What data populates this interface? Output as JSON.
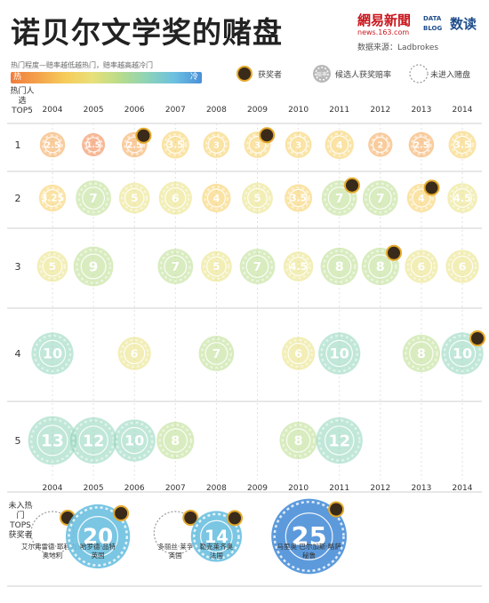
{
  "header": {
    "title": "诺贝尔文学奖的赌盘",
    "logo_netease": "網易新聞",
    "logo_netease_url": "news.163.com",
    "logo_datablog": "DATA BLOG",
    "logo_shudu": "数读",
    "source": "数据来源：Ladbrokes"
  },
  "legend": {
    "heat_label": "热门程度—赔率越低越热门，赔率越高越冷门",
    "hot": "热",
    "cold": "冷",
    "winner": "获奖者",
    "odds_chip": "赔率",
    "candidate": "候选人获奖赔率",
    "not_listed": "未进入赌盘"
  },
  "axis": {
    "row_header": "热门人选TOP5",
    "bottom_row_label": "未入热门TOPS获奖者",
    "row_labels": [
      "1",
      "2",
      "3",
      "4",
      "5"
    ]
  },
  "chart_data": {
    "type": "scatter",
    "title": "诺贝尔文学奖的赌盘",
    "x_labels": [
      "2004",
      "2005",
      "2006",
      "2007",
      "2008",
      "2009",
      "2010",
      "2011",
      "2012",
      "2013",
      "2014"
    ],
    "rows": [
      "1",
      "2",
      "3",
      "4",
      "5"
    ],
    "color_scale": [
      "#f07c3c",
      "#f4a24c",
      "#f6cc5a",
      "#e8e07a",
      "#b8dc8a",
      "#8dd3b8",
      "#6cc0e0",
      "#4a8fd8"
    ],
    "points": [
      {
        "year": "2004",
        "rank": 1,
        "odds": 2.5,
        "winner": false
      },
      {
        "year": "2005",
        "rank": 1,
        "odds": 1.5,
        "winner": false
      },
      {
        "year": "2006",
        "rank": 1,
        "odds": 2.5,
        "winner": true
      },
      {
        "year": "2007",
        "rank": 1,
        "odds": 3.5,
        "winner": false
      },
      {
        "year": "2008",
        "rank": 1,
        "odds": 3,
        "winner": false
      },
      {
        "year": "2009",
        "rank": 1,
        "odds": 3,
        "winner": true
      },
      {
        "year": "2010",
        "rank": 1,
        "odds": 3,
        "winner": false
      },
      {
        "year": "2011",
        "rank": 1,
        "odds": 4,
        "winner": false
      },
      {
        "year": "2012",
        "rank": 1,
        "odds": 2,
        "winner": false
      },
      {
        "year": "2013",
        "rank": 1,
        "odds": 2.5,
        "winner": false
      },
      {
        "year": "2014",
        "rank": 1,
        "odds": 3.5,
        "winner": false
      },
      {
        "year": "2004",
        "rank": 2,
        "odds": 3.25,
        "winner": false
      },
      {
        "year": "2005",
        "rank": 2,
        "odds": 7,
        "winner": false
      },
      {
        "year": "2006",
        "rank": 2,
        "odds": 5,
        "winner": false
      },
      {
        "year": "2007",
        "rank": 2,
        "odds": 6,
        "winner": false
      },
      {
        "year": "2008",
        "rank": 2,
        "odds": 4,
        "winner": false
      },
      {
        "year": "2009",
        "rank": 2,
        "odds": 5,
        "winner": false
      },
      {
        "year": "2010",
        "rank": 2,
        "odds": 3.5,
        "winner": false
      },
      {
        "year": "2011",
        "rank": 2,
        "odds": 7,
        "winner": true
      },
      {
        "year": "2012",
        "rank": 2,
        "odds": 7,
        "winner": false
      },
      {
        "year": "2013",
        "rank": 2,
        "odds": 4,
        "winner": true
      },
      {
        "year": "2014",
        "rank": 2,
        "odds": 4.5,
        "winner": false
      },
      {
        "year": "2004",
        "rank": 3,
        "odds": 5,
        "winner": false
      },
      {
        "year": "2005",
        "rank": 3,
        "odds": 9,
        "winner": false
      },
      {
        "year": "2007",
        "rank": 3,
        "odds": 7,
        "winner": false
      },
      {
        "year": "2008",
        "rank": 3,
        "odds": 5,
        "winner": false
      },
      {
        "year": "2009",
        "rank": 3,
        "odds": 7,
        "winner": false
      },
      {
        "year": "2010",
        "rank": 3,
        "odds": 4.5,
        "winner": false
      },
      {
        "year": "2011",
        "rank": 3,
        "odds": 8,
        "winner": false
      },
      {
        "year": "2012",
        "rank": 3,
        "odds": 8,
        "winner": true
      },
      {
        "year": "2013",
        "rank": 3,
        "odds": 6,
        "winner": false
      },
      {
        "year": "2014",
        "rank": 3,
        "odds": 6,
        "winner": false
      },
      {
        "year": "2004",
        "rank": 4,
        "odds": 10,
        "winner": false
      },
      {
        "year": "2006",
        "rank": 4,
        "odds": 6,
        "winner": false
      },
      {
        "year": "2008",
        "rank": 4,
        "odds": 7,
        "winner": false
      },
      {
        "year": "2010",
        "rank": 4,
        "odds": 6,
        "winner": false
      },
      {
        "year": "2011",
        "rank": 4,
        "odds": 10,
        "winner": false
      },
      {
        "year": "2013",
        "rank": 4,
        "odds": 8,
        "winner": false
      },
      {
        "year": "2014",
        "rank": 4,
        "odds": 10,
        "winner": true
      },
      {
        "year": "2004",
        "rank": 5,
        "odds": 13,
        "winner": false
      },
      {
        "year": "2005",
        "rank": 5,
        "odds": 12,
        "winner": false
      },
      {
        "year": "2006",
        "rank": 5,
        "odds": 10,
        "winner": false
      },
      {
        "year": "2007",
        "rank": 5,
        "odds": 8,
        "winner": false
      },
      {
        "year": "2010",
        "rank": 5,
        "odds": 8,
        "winner": false
      },
      {
        "year": "2011",
        "rank": 5,
        "odds": 12,
        "winner": false
      }
    ],
    "outside_winners": [
      {
        "year": "2004",
        "odds": null,
        "listed": false,
        "winner": true,
        "name_lines": [
          "艾尔弗雷德·耶利内克",
          "奥地利"
        ]
      },
      {
        "year": "2005",
        "odds": 20,
        "listed": true,
        "winner": true,
        "name_lines": [
          "哈罗德·品特",
          "英国"
        ]
      },
      {
        "year": "2007",
        "odds": null,
        "listed": false,
        "winner": true,
        "name_lines": [
          "多丽丝·莱辛",
          "英国"
        ]
      },
      {
        "year": "2008",
        "odds": 14,
        "listed": true,
        "winner": true,
        "name_lines": [
          "勒克莱齐奥",
          "法国"
        ]
      },
      {
        "year": "2010",
        "odds": 25,
        "listed": true,
        "winner": true,
        "name_lines": [
          "马里奥·巴尔加斯·略萨",
          "秘鲁"
        ]
      }
    ]
  }
}
